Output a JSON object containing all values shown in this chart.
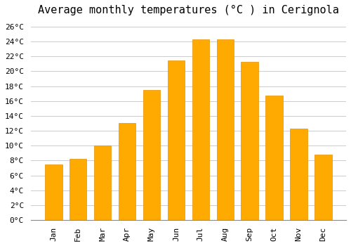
{
  "title": "Average monthly temperatures (°C ) in Cerignola",
  "months": [
    "Jan",
    "Feb",
    "Mar",
    "Apr",
    "May",
    "Jun",
    "Jul",
    "Aug",
    "Sep",
    "Oct",
    "Nov",
    "Dec"
  ],
  "values": [
    7.5,
    8.2,
    10.0,
    13.0,
    17.5,
    21.5,
    24.3,
    24.3,
    21.3,
    16.7,
    12.3,
    8.8
  ],
  "bar_color": "#FFAA00",
  "bar_edge_color": "#E89000",
  "background_color": "#FFFFFF",
  "grid_color": "#CCCCCC",
  "ylim": [
    0,
    27
  ],
  "ytick_step": 2,
  "title_fontsize": 11,
  "tick_fontsize": 8,
  "font_family": "monospace"
}
